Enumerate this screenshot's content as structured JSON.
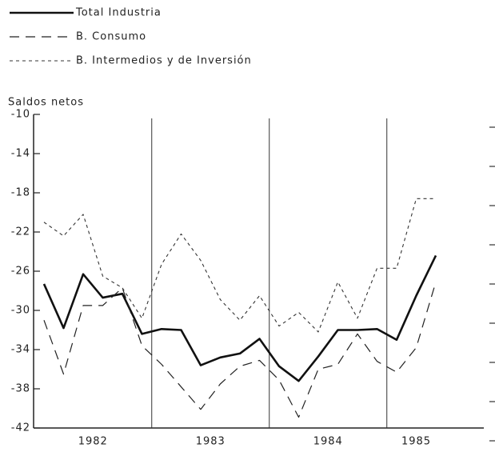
{
  "chart_data": {
    "type": "line",
    "y_label": "Saldos netos",
    "categories": [
      null,
      null,
      null,
      null,
      null,
      null,
      null,
      null,
      null,
      null,
      null,
      null,
      null,
      null,
      null,
      null,
      null,
      null,
      null,
      null,
      null
    ],
    "periods": [
      "1982",
      "1983",
      "1984",
      "1985"
    ],
    "series": [
      {
        "name": "Total Industria",
        "color": "#111111",
        "values": [
          -27.3,
          -31.8,
          -26.3,
          -28.7,
          -28.3,
          -32.4,
          -31.9,
          -32.0,
          -35.6,
          -34.8,
          -34.4,
          -32.9,
          -35.7,
          -37.2,
          -34.7,
          -32.0,
          -32.0,
          -31.9,
          -33.0,
          -28.5,
          -24.4
        ]
      },
      {
        "name": "B. Consumo",
        "color": "#222222",
        "values": [
          -31.0,
          -36.5,
          -29.5,
          -29.5,
          -27.7,
          -33.6,
          -35.5,
          -37.8,
          -40.1,
          -37.5,
          -35.7,
          -35.1,
          -37.1,
          -40.9,
          -36.0,
          -35.5,
          -32.4,
          -35.2,
          -36.3,
          -33.8,
          -27.1
        ]
      },
      {
        "name": "B. Intermedios y de Inversión",
        "color": "#333333",
        "values": [
          -21.0,
          -22.4,
          -20.2,
          -26.5,
          -27.7,
          -30.8,
          -25.3,
          -22.2,
          -24.9,
          -28.9,
          -31.0,
          -28.5,
          -31.6,
          -30.2,
          -32.2,
          -27.1,
          -30.8,
          -25.7,
          -25.7,
          -18.6,
          -18.6
        ]
      }
    ],
    "ylim": [
      -42,
      -10
    ],
    "yticks": [
      -42,
      -38,
      -34,
      -30,
      -26,
      -22,
      -18,
      -14,
      -10
    ]
  }
}
